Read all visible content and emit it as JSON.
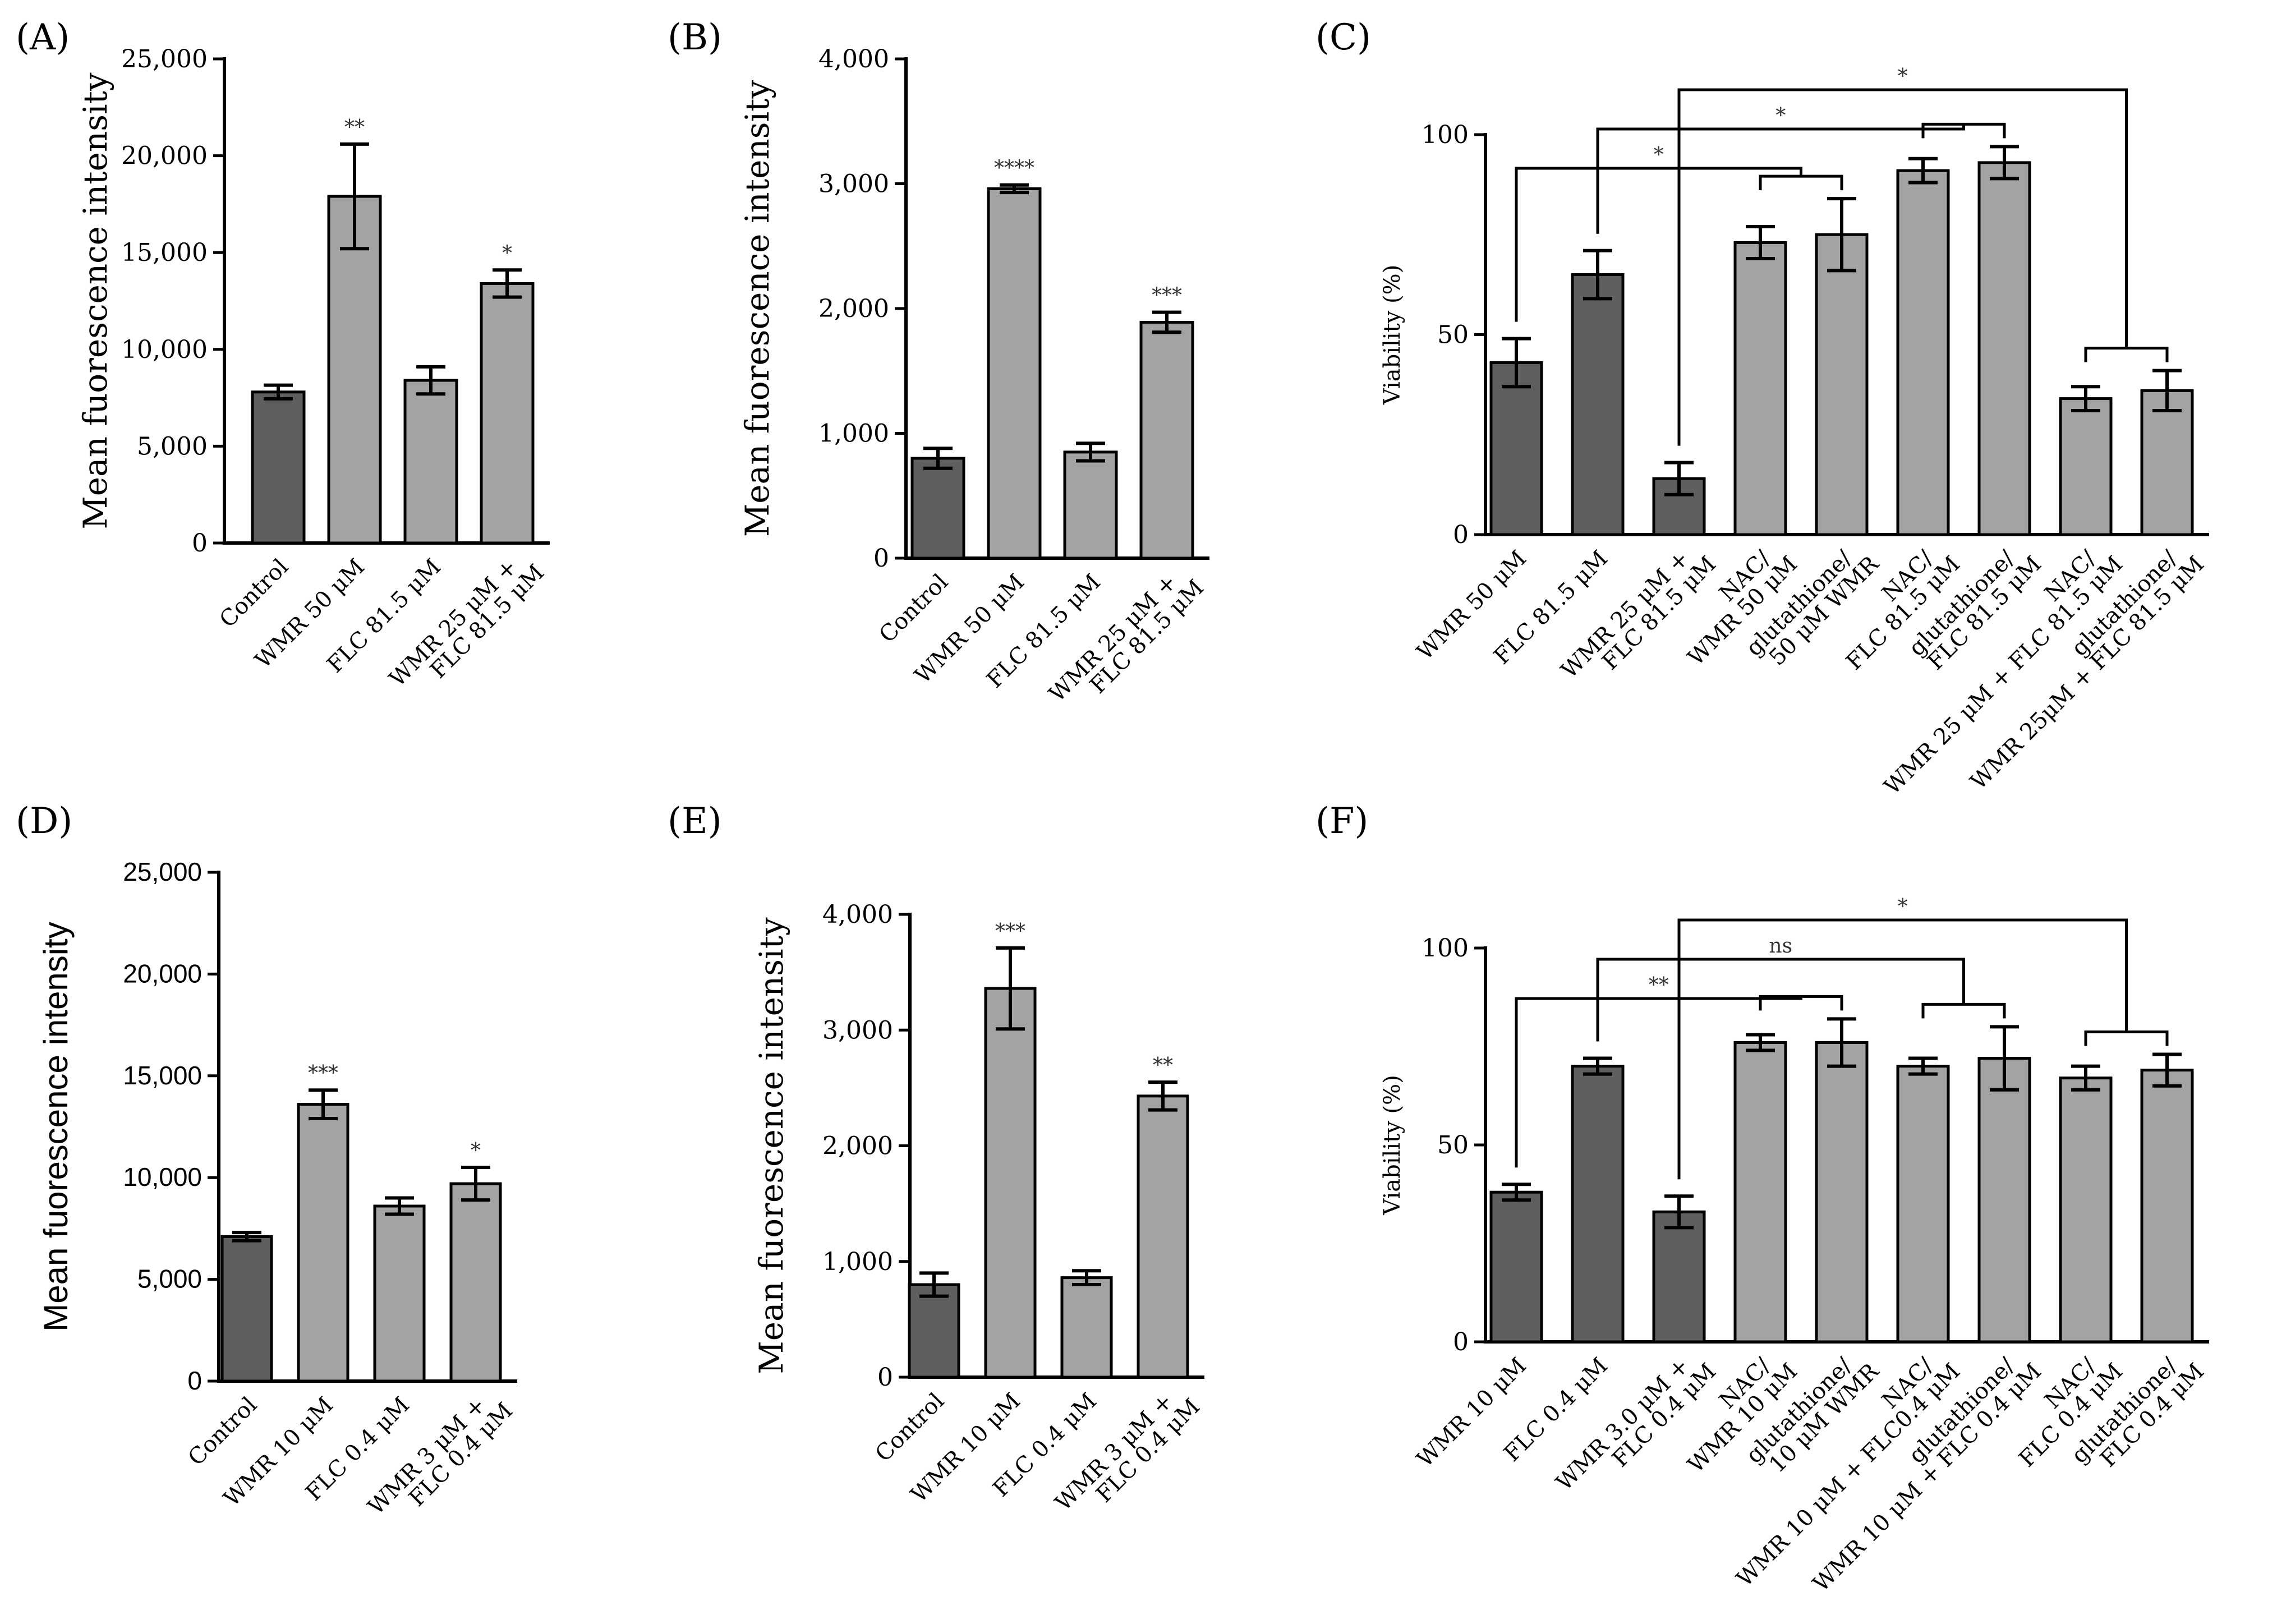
{
  "colors": {
    "dark": "#5f5f5f",
    "light": "#a3a3a5"
  },
  "chart_data": [
    {
      "id": "A",
      "panel": "(A)",
      "type": "bar",
      "ylabel": "Mean fuorescence intensity",
      "ylim": [
        0,
        25000
      ],
      "yticks": [
        "0",
        "5,000",
        "10,000",
        "15,000",
        "20,000",
        "25,000"
      ],
      "categories": [
        [
          "Control"
        ],
        [
          "WMR 50 μM"
        ],
        [
          "FLC 81.5 μM"
        ],
        [
          "WMR 25 μM +",
          "FLC 81.5 μM"
        ]
      ],
      "values": [
        7800,
        17900,
        8400,
        13400
      ],
      "errors": [
        350,
        2700,
        700,
        700
      ],
      "shades": [
        "dark",
        "light",
        "light",
        "light"
      ],
      "significance": [
        "",
        "**",
        "",
        "*"
      ]
    },
    {
      "id": "B",
      "panel": "(B)",
      "type": "bar",
      "ylabel": "Mean fuorescence intensity",
      "ylim": [
        0,
        4000
      ],
      "yticks": [
        "0",
        "1,000",
        "2,000",
        "3,000",
        "4,000"
      ],
      "categories": [
        [
          "Control"
        ],
        [
          "WMR 50 μM"
        ],
        [
          "FLC 81.5 μM"
        ],
        [
          "WMR 25 μM +",
          "FLC 81.5 μM"
        ]
      ],
      "values": [
        800,
        2960,
        850,
        1890
      ],
      "errors": [
        80,
        30,
        70,
        80
      ],
      "shades": [
        "dark",
        "light",
        "light",
        "light"
      ],
      "significance": [
        "",
        "****",
        "",
        "***"
      ]
    },
    {
      "id": "C",
      "panel": "(C)",
      "type": "bar",
      "ylabel": "Viability (%)",
      "ylim": [
        0,
        100
      ],
      "yticks": [
        "0",
        "50",
        "100"
      ],
      "categories": [
        [
          "WMR 50 μM"
        ],
        [
          "FLC 81.5 μM"
        ],
        [
          "WMR 25 μM +",
          "FLC 81.5 μM"
        ],
        [
          "NAC/",
          "WMR 50 μM"
        ],
        [
          "glutathione/",
          "50 μM WMR"
        ],
        [
          "NAC/",
          "FLC 81.5 μM"
        ],
        [
          "glutathione/",
          "FLC 81.5 μM"
        ],
        [
          "NAC/",
          "WMR 25 μM + FLC 81.5 μM"
        ],
        [
          "glutathione/",
          "WMR 25μM + FLC 81.5 μM"
        ]
      ],
      "values": [
        43,
        65,
        14,
        73,
        75,
        91,
        93,
        34,
        36
      ],
      "errors": [
        6,
        6,
        4,
        4,
        9,
        3,
        4,
        3,
        5
      ],
      "shades": [
        "dark",
        "dark",
        "dark",
        "light",
        "light",
        "light",
        "light",
        "light",
        "light"
      ],
      "comparisons": [
        {
          "from": 0,
          "to": [
            3,
            4
          ],
          "label": "*"
        },
        {
          "from": 1,
          "to": [
            5,
            6
          ],
          "label": "*"
        },
        {
          "from": 2,
          "to": [
            7,
            8
          ],
          "label": "*"
        }
      ]
    },
    {
      "id": "D",
      "panel": "(D)",
      "type": "bar",
      "ylabel": "Mean fuorescence intensity",
      "ylim": [
        0,
        25000
      ],
      "yticks": [
        "0",
        "5,000",
        "10,000",
        "15,000",
        "20,000",
        "25,000"
      ],
      "categories": [
        [
          "Control"
        ],
        [
          "WMR 10 μM"
        ],
        [
          "FLC 0.4 μM"
        ],
        [
          "WMR 3 μM +",
          "FLC 0.4 μM"
        ]
      ],
      "values": [
        7100,
        13600,
        8600,
        9700
      ],
      "errors": [
        200,
        700,
        400,
        800
      ],
      "shades": [
        "dark",
        "light",
        "light",
        "light"
      ],
      "significance": [
        "",
        "***",
        "",
        "*"
      ]
    },
    {
      "id": "E",
      "panel": "(E)",
      "type": "bar",
      "ylabel": "Mean fuorescence intensity",
      "ylim": [
        0,
        4000
      ],
      "yticks": [
        "0",
        "1,000",
        "2,000",
        "3,000",
        "4,000"
      ],
      "categories": [
        [
          "Control"
        ],
        [
          "WMR 10 μM"
        ],
        [
          "FLC 0.4 μM"
        ],
        [
          "WMR 3 μM +",
          "FLC 0.4 μM"
        ]
      ],
      "values": [
        800,
        3360,
        860,
        2430
      ],
      "errors": [
        100,
        350,
        60,
        120
      ],
      "shades": [
        "dark",
        "light",
        "light",
        "light"
      ],
      "significance": [
        "",
        "***",
        "",
        "**"
      ]
    },
    {
      "id": "F",
      "panel": "(F)",
      "type": "bar",
      "ylabel": "Viability (%)",
      "ylim": [
        0,
        100
      ],
      "yticks": [
        "0",
        "50",
        "100"
      ],
      "categories": [
        [
          "WMR 10 μM"
        ],
        [
          "FLC 0.4 μM"
        ],
        [
          "WMR 3.0 μM +",
          "FLC 0.4 μM"
        ],
        [
          "NAC/",
          "WMR 10 μM"
        ],
        [
          "glutathione/",
          "10 μM WMR"
        ],
        [
          "NAC/",
          "WMR 10 μM + FLC0.4 μM"
        ],
        [
          "glutathione/",
          "WMR 10 μM + FLC 0.4 μM"
        ],
        [
          "NAC/",
          "FLC 0.4 μM"
        ],
        [
          "glutathione/",
          "FLC 0.4 μM"
        ]
      ],
      "values": [
        38,
        70,
        33,
        76,
        76,
        70,
        72,
        67,
        69
      ],
      "errors": [
        2,
        2,
        4,
        2,
        6,
        2,
        8,
        3,
        4
      ],
      "shades": [
        "dark",
        "dark",
        "dark",
        "light",
        "light",
        "light",
        "light",
        "light",
        "light"
      ],
      "comparisons": [
        {
          "from": 0,
          "to": [
            3,
            4
          ],
          "label": "**"
        },
        {
          "from": 1,
          "to": [
            5,
            6
          ],
          "label": "ns"
        },
        {
          "from": 2,
          "to": [
            7,
            8
          ],
          "label": "*"
        }
      ]
    }
  ]
}
